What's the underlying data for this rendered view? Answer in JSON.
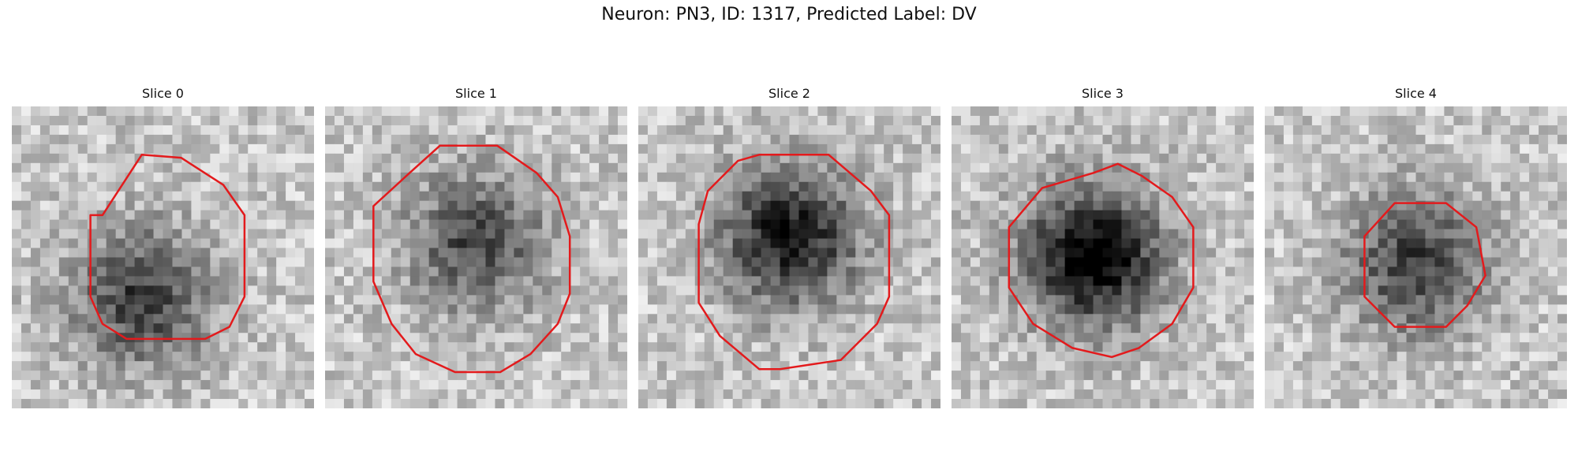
{
  "figure": {
    "title": "Neuron: PN3, ID: 1317, Predicted Label: DV",
    "colors": {
      "contour": "#e31a1c",
      "background": "#ffffff"
    },
    "panels": [
      {
        "label": "Slice 0",
        "dark_center": [
          0.43,
          0.63
        ],
        "dark_strength": 0.55,
        "contour": [
          [
            0.3,
            0.36
          ],
          [
            0.43,
            0.16
          ],
          [
            0.56,
            0.17
          ],
          [
            0.7,
            0.26
          ],
          [
            0.77,
            0.36
          ],
          [
            0.77,
            0.63
          ],
          [
            0.72,
            0.73
          ],
          [
            0.64,
            0.77
          ],
          [
            0.38,
            0.77
          ],
          [
            0.3,
            0.72
          ],
          [
            0.26,
            0.63
          ],
          [
            0.26,
            0.36
          ]
        ]
      },
      {
        "label": "Slice 1",
        "dark_center": [
          0.5,
          0.45
        ],
        "dark_strength": 0.5,
        "contour": [
          [
            0.16,
            0.33
          ],
          [
            0.28,
            0.22
          ],
          [
            0.38,
            0.13
          ],
          [
            0.57,
            0.13
          ],
          [
            0.7,
            0.22
          ],
          [
            0.77,
            0.3
          ],
          [
            0.81,
            0.43
          ],
          [
            0.81,
            0.62
          ],
          [
            0.77,
            0.72
          ],
          [
            0.68,
            0.82
          ],
          [
            0.58,
            0.88
          ],
          [
            0.43,
            0.88
          ],
          [
            0.3,
            0.82
          ],
          [
            0.22,
            0.72
          ],
          [
            0.16,
            0.58
          ]
        ]
      },
      {
        "label": "Slice 2",
        "dark_center": [
          0.5,
          0.43
        ],
        "dark_strength": 0.7,
        "contour": [
          [
            0.23,
            0.28
          ],
          [
            0.33,
            0.18
          ],
          [
            0.4,
            0.16
          ],
          [
            0.63,
            0.16
          ],
          [
            0.77,
            0.28
          ],
          [
            0.83,
            0.36
          ],
          [
            0.83,
            0.63
          ],
          [
            0.79,
            0.72
          ],
          [
            0.67,
            0.84
          ],
          [
            0.47,
            0.87
          ],
          [
            0.4,
            0.87
          ],
          [
            0.27,
            0.76
          ],
          [
            0.2,
            0.65
          ],
          [
            0.2,
            0.39
          ]
        ]
      },
      {
        "label": "Slice 3",
        "dark_center": [
          0.47,
          0.5
        ],
        "dark_strength": 0.82,
        "contour": [
          [
            0.3,
            0.27
          ],
          [
            0.47,
            0.22
          ],
          [
            0.55,
            0.19
          ],
          [
            0.63,
            0.23
          ],
          [
            0.73,
            0.3
          ],
          [
            0.8,
            0.4
          ],
          [
            0.8,
            0.6
          ],
          [
            0.73,
            0.72
          ],
          [
            0.62,
            0.8
          ],
          [
            0.53,
            0.83
          ],
          [
            0.4,
            0.8
          ],
          [
            0.27,
            0.72
          ],
          [
            0.19,
            0.6
          ],
          [
            0.19,
            0.4
          ]
        ]
      },
      {
        "label": "Slice 4",
        "dark_center": [
          0.5,
          0.52
        ],
        "dark_strength": 0.55,
        "contour": [
          [
            0.43,
            0.32
          ],
          [
            0.6,
            0.32
          ],
          [
            0.7,
            0.4
          ],
          [
            0.73,
            0.56
          ],
          [
            0.67,
            0.66
          ],
          [
            0.6,
            0.73
          ],
          [
            0.43,
            0.73
          ],
          [
            0.33,
            0.63
          ],
          [
            0.33,
            0.43
          ]
        ]
      }
    ]
  }
}
